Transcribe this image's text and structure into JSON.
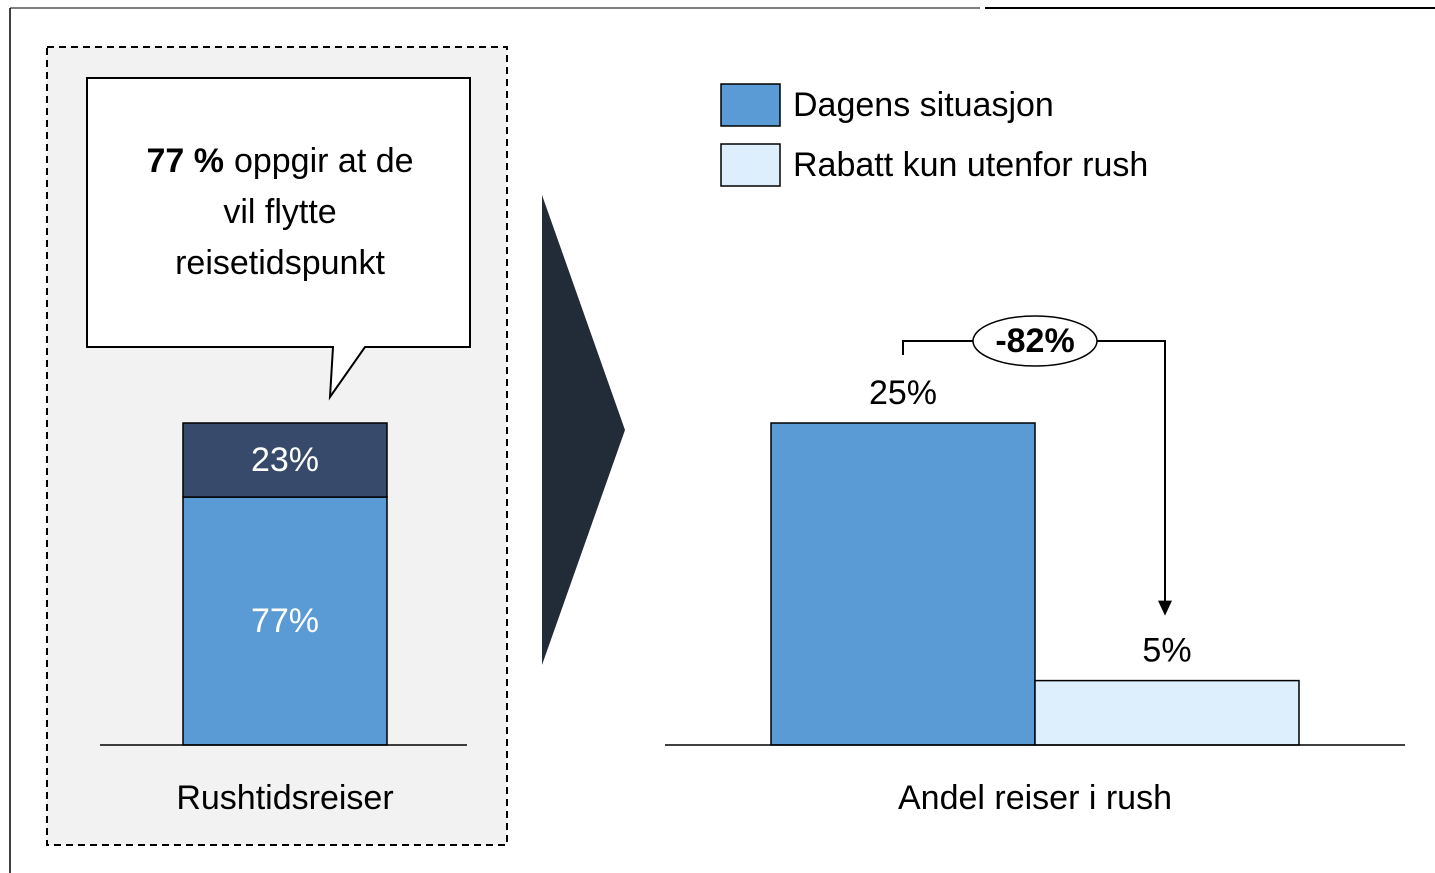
{
  "chart_data": [
    {
      "type": "stacked_bar",
      "categories": [
        "Rushtidsreiser"
      ],
      "series": [
        {
          "color": "#5b9bd5",
          "values": [
            77
          ],
          "value_labels": [
            "77%"
          ]
        },
        {
          "color": "#374a6b",
          "values": [
            23
          ],
          "value_labels": [
            "23%"
          ]
        }
      ],
      "ylim": [
        0,
        100
      ],
      "callout": {
        "bold": "77 %",
        "lines": [
          "oppgir at de",
          "vil flytte",
          "reisetidspunkt"
        ]
      }
    },
    {
      "type": "bar",
      "categories": [
        "Andel reiser i rush"
      ],
      "series": [
        {
          "name": "Dagens situasjon",
          "color": "#5b9bd5",
          "values": [
            25
          ],
          "value_labels": [
            "25%"
          ]
        },
        {
          "name": "Rabatt kun utenfor rush",
          "color": "#ddeffc",
          "values": [
            5
          ],
          "value_labels": [
            "5%"
          ]
        }
      ],
      "ylim": [
        0,
        25
      ],
      "annotation": "-82%"
    }
  ]
}
